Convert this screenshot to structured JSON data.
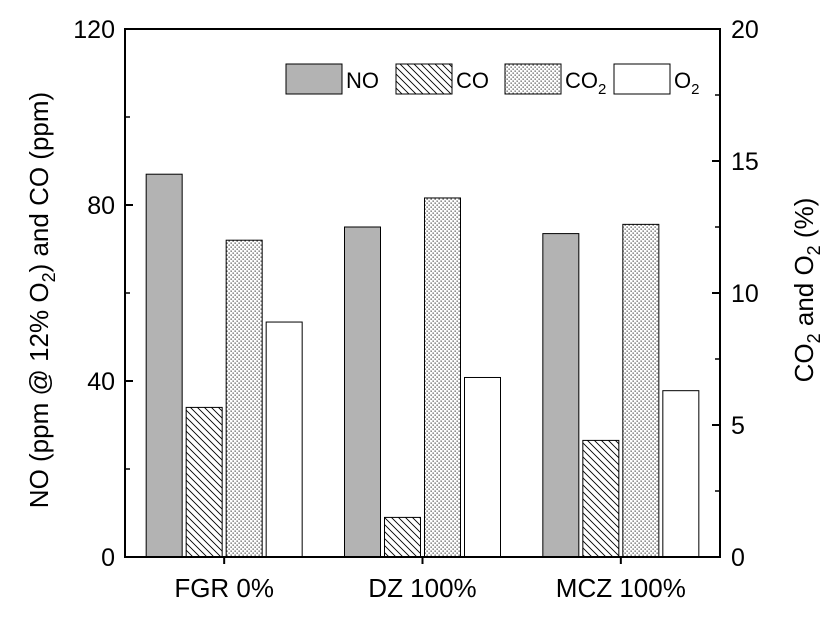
{
  "chart_data": {
    "type": "bar",
    "categories": [
      "FGR 0%",
      "DZ 100%",
      "MCZ 100%"
    ],
    "series": [
      {
        "name": "NO",
        "axis": "left",
        "pattern": "solid-gray",
        "values": [
          87,
          75,
          73.5
        ]
      },
      {
        "name": "CO",
        "axis": "left",
        "pattern": "diagonal-hatch",
        "values": [
          34,
          9,
          26.5
        ]
      },
      {
        "name": "CO2",
        "axis": "right",
        "pattern": "dots",
        "values": [
          12.0,
          13.6,
          12.6
        ]
      },
      {
        "name": "O2",
        "axis": "right",
        "pattern": "empty",
        "values": [
          8.9,
          6.8,
          6.3
        ]
      }
    ],
    "legend": {
      "position": "top-right",
      "entries": [
        {
          "main": "NO",
          "sub": ""
        },
        {
          "main": "CO",
          "sub": ""
        },
        {
          "main": "CO",
          "sub": "2"
        },
        {
          "main": "O",
          "sub": "2"
        }
      ]
    },
    "left_axis": {
      "ylim": [
        0,
        120
      ],
      "ticks": [
        "0",
        "40",
        "80",
        "120"
      ],
      "label_parts": [
        "NO (ppm @ 12% O",
        "2",
        ") and CO (ppm)"
      ]
    },
    "right_axis": {
      "ylim": [
        0,
        20
      ],
      "ticks": [
        "0",
        "5",
        "10",
        "15",
        "20"
      ],
      "label_parts": [
        "CO",
        "2",
        " and O",
        "2",
        " (%)"
      ]
    },
    "colors": {
      "no_fill": "#b3b3b3",
      "stroke": "#000000"
    }
  }
}
